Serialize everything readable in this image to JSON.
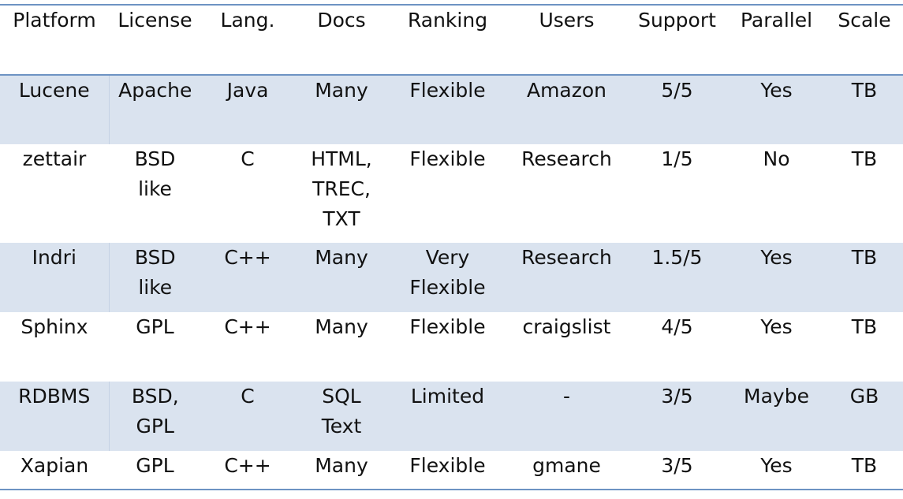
{
  "table": {
    "headers": [
      "Platform",
      "License",
      "Lang.",
      "Docs",
      "Ranking",
      "Users",
      "Support",
      "Parallel",
      "Scale"
    ],
    "rows": [
      [
        "Lucene",
        "Apache",
        "Java",
        "Many",
        "Flexible",
        "Amazon",
        "5/5",
        "Yes",
        "TB"
      ],
      [
        "zettair",
        "BSD\nlike",
        "C",
        "HTML,\nTREC,\nTXT",
        "Flexible",
        "Research",
        "1/5",
        "No",
        "TB"
      ],
      [
        "Indri",
        "BSD\nlike",
        "C++",
        "Many",
        "Very\nFlexible",
        "Research",
        "1.5/5",
        "Yes",
        "TB"
      ],
      [
        "Sphinx",
        "GPL",
        "C++",
        "Many",
        "Flexible",
        "craigslist",
        "4/5",
        "Yes",
        "TB"
      ],
      [
        "RDBMS",
        "BSD,\nGPL",
        "C",
        "SQL\nText",
        "Limited",
        "-",
        "3/5",
        "Maybe",
        "GB"
      ],
      [
        "Xapian",
        "GPL",
        "C++",
        "Many",
        "Flexible",
        "gmane",
        "3/5",
        "Yes",
        "TB"
      ]
    ]
  },
  "colors": {
    "rule": "#6d93c3",
    "band": "#dae3ef",
    "text": "#111111"
  }
}
